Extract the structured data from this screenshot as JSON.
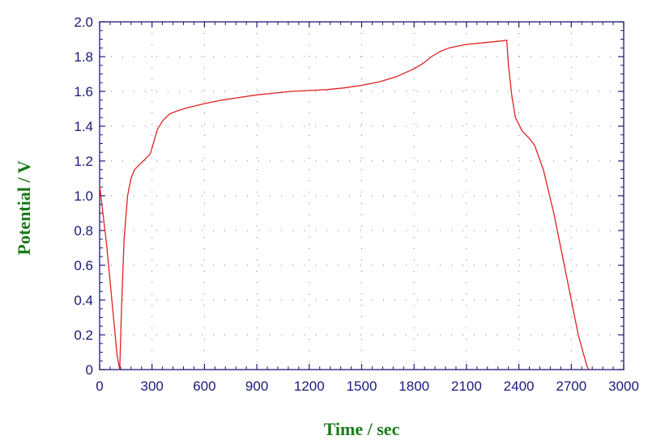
{
  "chart_data": {
    "type": "line",
    "title": "",
    "xlabel": "Time / sec",
    "ylabel": "Potential / V",
    "xlim": [
      0,
      3000
    ],
    "ylim": [
      0,
      2.0
    ],
    "x_ticks": [
      "0",
      "300",
      "600",
      "900",
      "1200",
      "1500",
      "1800",
      "2100",
      "2400",
      "2700",
      "3000"
    ],
    "y_ticks": [
      "0",
      "0.2",
      "0.4",
      "0.6",
      "0.8",
      "1.0",
      "1.2",
      "1.4",
      "1.6",
      "1.8",
      "2.0"
    ],
    "grid": true,
    "legend": "none",
    "colors": {
      "axis": "#1a1a7a",
      "tick_label": "#1a1a7a",
      "axis_title": "#1a7a1a",
      "series": "#e02020",
      "grid": "#777777"
    },
    "series": [
      {
        "name": "",
        "x": [
          0,
          40,
          70,
          100,
          115,
          125,
          140,
          160,
          180,
          200,
          230,
          260,
          290,
          310,
          330,
          360,
          400,
          450,
          500,
          600,
          700,
          800,
          900,
          1000,
          1100,
          1200,
          1300,
          1400,
          1500,
          1600,
          1700,
          1800,
          1850,
          1900,
          1950,
          2000,
          2100,
          2200,
          2300,
          2330,
          2331,
          2340,
          2360,
          2380,
          2420,
          2460,
          2490,
          2540,
          2600,
          2650,
          2700,
          2740,
          2770,
          2790,
          2800
        ],
        "y": [
          1.06,
          0.72,
          0.4,
          0.08,
          0.0,
          0.35,
          0.75,
          1.0,
          1.1,
          1.15,
          1.18,
          1.21,
          1.24,
          1.31,
          1.38,
          1.43,
          1.47,
          1.49,
          1.505,
          1.53,
          1.55,
          1.565,
          1.58,
          1.59,
          1.6,
          1.605,
          1.61,
          1.62,
          1.635,
          1.655,
          1.685,
          1.73,
          1.76,
          1.8,
          1.83,
          1.85,
          1.87,
          1.88,
          1.89,
          1.895,
          1.89,
          1.75,
          1.57,
          1.45,
          1.37,
          1.33,
          1.29,
          1.15,
          0.9,
          0.65,
          0.4,
          0.2,
          0.09,
          0.02,
          0.0
        ]
      }
    ]
  }
}
